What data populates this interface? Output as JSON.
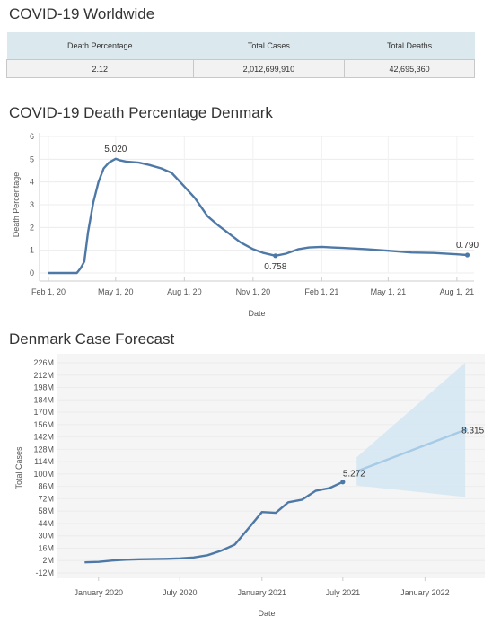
{
  "summary": {
    "title": "COVID-19 Worldwide",
    "columns": [
      "Death Percentage",
      "Total Cases",
      "Total Deaths"
    ],
    "values": [
      "2.12",
      "2,012,699,910",
      "42,695,360"
    ]
  },
  "chart_data": [
    {
      "type": "line",
      "title": "COVID-19 Death Percentage Denmark",
      "xlabel": "Date",
      "ylabel": "Death Percentage",
      "x_ticks": [
        "Feb 1, 20",
        "May 1, 20",
        "Aug 1, 20",
        "Nov 1, 20",
        "Feb 1, 21",
        "May 1, 21",
        "Aug 1, 21"
      ],
      "y_ticks": [
        "0",
        "1",
        "2",
        "3",
        "4",
        "5",
        "6"
      ],
      "ylim": [
        0,
        6
      ],
      "xlim": [
        "2020-01-20",
        "2021-08-24"
      ],
      "x": [
        "2020-02-01",
        "2020-03-10",
        "2020-03-15",
        "2020-03-20",
        "2020-03-25",
        "2020-04-01",
        "2020-04-08",
        "2020-04-15",
        "2020-04-22",
        "2020-05-01",
        "2020-05-07",
        "2020-05-15",
        "2020-06-01",
        "2020-06-15",
        "2020-07-01",
        "2020-07-15",
        "2020-08-01",
        "2020-08-15",
        "2020-09-01",
        "2020-09-15",
        "2020-10-01",
        "2020-10-15",
        "2020-11-01",
        "2020-11-15",
        "2020-12-01",
        "2020-12-15",
        "2021-01-01",
        "2021-01-15",
        "2021-02-01",
        "2021-02-15",
        "2021-03-01",
        "2021-04-01",
        "2021-05-01",
        "2021-06-01",
        "2021-07-01",
        "2021-08-01",
        "2021-08-15"
      ],
      "values": [
        0,
        0,
        0.2,
        0.5,
        1.8,
        3.1,
        4.0,
        4.6,
        4.85,
        5.02,
        4.95,
        4.9,
        4.85,
        4.75,
        4.6,
        4.4,
        3.8,
        3.3,
        2.5,
        2.1,
        1.7,
        1.35,
        1.05,
        0.88,
        0.758,
        0.85,
        1.05,
        1.12,
        1.15,
        1.12,
        1.1,
        1.05,
        0.98,
        0.9,
        0.88,
        0.82,
        0.79
      ],
      "data_labels": [
        {
          "x": "2020-05-01",
          "y": 5.02,
          "text": "5.020"
        },
        {
          "x": "2020-12-01",
          "y": 0.758,
          "text": "0.758"
        },
        {
          "x": "2021-08-15",
          "y": 0.79,
          "text": "0.790"
        }
      ],
      "line_color": "#4e79a7"
    },
    {
      "type": "line",
      "title": "Denmark Case Forecast",
      "xlabel": "Date",
      "ylabel": "Total Cases",
      "x_ticks": [
        "January 2020",
        "July 2020",
        "January 2021",
        "July 2021",
        "January 2022"
      ],
      "y_ticks": [
        "-12M",
        "2M",
        "16M",
        "30M",
        "44M",
        "58M",
        "72M",
        "86M",
        "100M",
        "114M",
        "128M",
        "142M",
        "156M",
        "170M",
        "184M",
        "198M",
        "212M",
        "226M"
      ],
      "ylim": [
        -12,
        226
      ],
      "xlim": [
        "2019-10-01",
        "2022-05-15"
      ],
      "x": [
        "2019-12-01",
        "2020-01-01",
        "2020-02-01",
        "2020-03-01",
        "2020-04-01",
        "2020-05-01",
        "2020-06-01",
        "2020-07-01",
        "2020-08-01",
        "2020-09-01",
        "2020-10-01",
        "2020-11-01",
        "2020-12-01",
        "2021-01-01",
        "2021-02-01",
        "2021-03-01",
        "2021-04-01",
        "2021-05-01",
        "2021-06-01",
        "2021-07-01"
      ],
      "values": [
        0,
        0.5,
        2,
        3,
        3.5,
        3.7,
        4,
        4.5,
        5.5,
        8,
        13,
        20,
        38,
        57,
        56,
        68,
        71,
        81,
        84,
        91
      ],
      "forecast": {
        "x": [
          "2021-08-01",
          "2022-04-01"
        ],
        "values": [
          103,
          150
        ],
        "upper": [
          119,
          226
        ],
        "lower": [
          87,
          74
        ]
      },
      "data_labels": [
        {
          "x": "2021-07-01",
          "y": 91,
          "text": "5.272"
        },
        {
          "x": "2022-04-01",
          "y": 150,
          "text": "8.315"
        }
      ],
      "line_color": "#4e79a7",
      "forecast_color": "#a6cbe6",
      "band_color": "#d4e6f3"
    }
  ]
}
